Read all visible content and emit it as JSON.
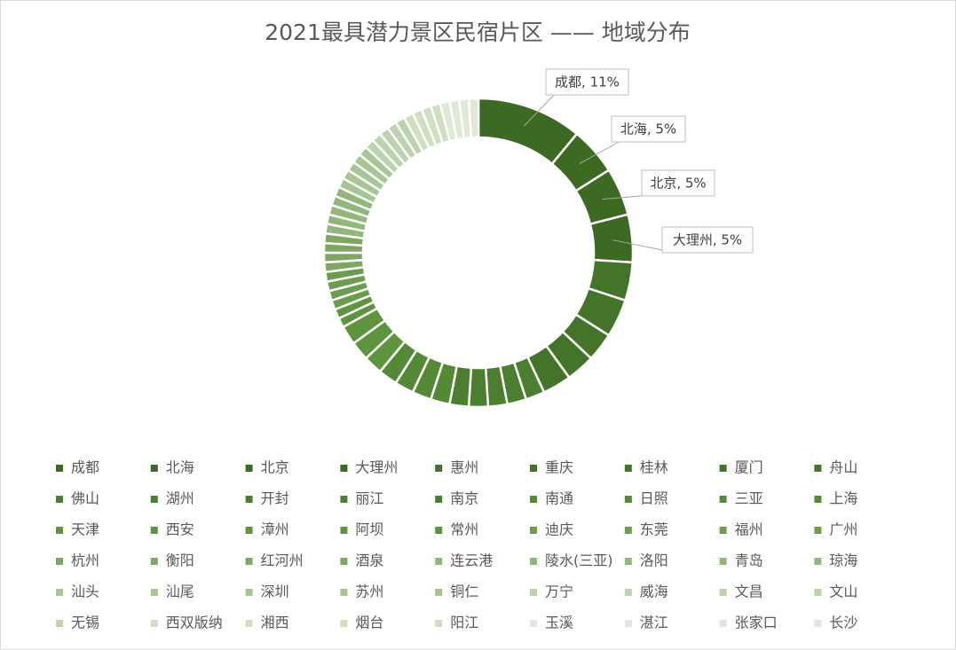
{
  "chart_data": {
    "type": "donut",
    "title": "2021最具潜力景区民宿片区 —— 地域分布",
    "categories": [
      "成都",
      "北海",
      "北京",
      "大理州",
      "惠州",
      "重庆",
      "桂林",
      "厦门",
      "舟山",
      "佛山",
      "湖州",
      "开封",
      "丽江",
      "南京",
      "南通",
      "日照",
      "三亚",
      "上海",
      "天津",
      "西安",
      "漳州",
      "阿坝",
      "常州",
      "迪庆",
      "东莞",
      "福州",
      "广州",
      "杭州",
      "衡阳",
      "红河州",
      "酒泉",
      "连云港",
      "陵水(三亚)",
      "洛阳",
      "青岛",
      "琼海",
      "汕头",
      "汕尾",
      "深圳",
      "苏州",
      "铜仁",
      "万宁",
      "威海",
      "文昌",
      "文山",
      "无锡",
      "西双版纳",
      "湘西",
      "烟台",
      "阳江",
      "玉溪",
      "湛江",
      "张家口",
      "长沙"
    ],
    "values": [
      11,
      5,
      5,
      5,
      4,
      4,
      3,
      3,
      3,
      2,
      2,
      2,
      2,
      2,
      2,
      2,
      2,
      2,
      2,
      2,
      2,
      1,
      1,
      1,
      1,
      1,
      1,
      1,
      1,
      1,
      1,
      1,
      1,
      1,
      1,
      1,
      1,
      1,
      1,
      1,
      1,
      1,
      1,
      1,
      1,
      1,
      1,
      1,
      1,
      1,
      1,
      1,
      1,
      1
    ],
    "value_labels": [
      "成都, 11%",
      "北海, 5%",
      "北京, 5%",
      "大理州, 5%",
      null,
      null,
      null,
      null,
      null,
      null,
      null,
      null,
      null,
      null,
      null,
      null,
      null,
      null,
      null,
      null,
      null,
      null,
      null,
      null,
      null,
      null,
      null,
      null,
      null,
      null,
      null,
      null,
      null,
      null,
      null,
      null,
      null,
      null,
      null,
      null,
      null,
      null,
      null,
      null,
      null,
      null,
      null,
      null,
      null,
      null,
      null,
      null,
      null,
      null
    ],
    "colors": [
      "#3d6a22",
      "#3d6a22",
      "#3d6a22",
      "#3d6a22",
      "#43742a",
      "#43742a",
      "#43742a",
      "#43742a",
      "#43742a",
      "#4b7f2f",
      "#4b7f2f",
      "#4b7f2f",
      "#4b7f2f",
      "#4b7f2f",
      "#548a36",
      "#548a36",
      "#548a36",
      "#548a36",
      "#5f943e",
      "#5f943e",
      "#5f943e",
      "#5f943e",
      "#5f943e",
      "#6c9c4d",
      "#6c9c4d",
      "#6c9c4d",
      "#6c9c4d",
      "#7ea862",
      "#7ea862",
      "#7ea862",
      "#7ea862",
      "#92b77b",
      "#92b77b",
      "#92b77b",
      "#92b77b",
      "#92b77b",
      "#a7c595",
      "#a7c595",
      "#a7c595",
      "#a7c595",
      "#a7c595",
      "#bcd3ae",
      "#bcd3ae",
      "#bcd3ae",
      "#bcd3ae",
      "#bcd3ae",
      "#cedfc4",
      "#cedfc4",
      "#cedfc4",
      "#cedfc4",
      "#dfe9d7",
      "#dfe9d7",
      "#dfe9d7",
      "#dfe9d7"
    ],
    "legend": "bottom"
  }
}
